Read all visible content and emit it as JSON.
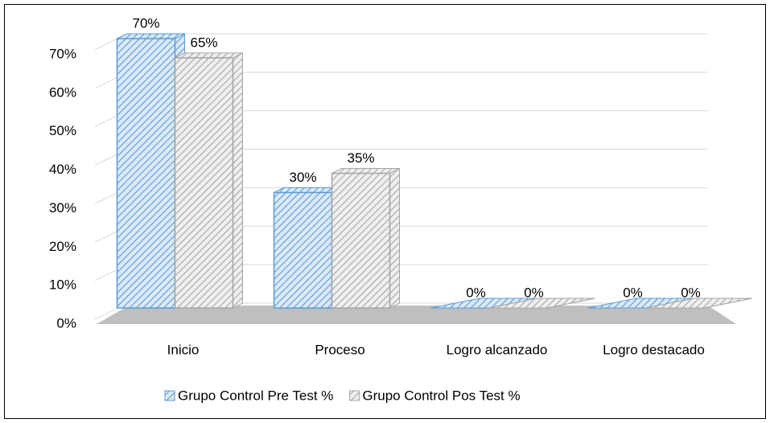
{
  "chart_data": {
    "type": "bar3d",
    "categories": [
      "Inicio",
      "Proceso",
      "Logro alcanzado",
      "Logro destacado"
    ],
    "series": [
      {
        "name": "Grupo Control Pre Test %",
        "color": "#5b9bd5",
        "values": [
          70,
          30,
          0,
          0
        ],
        "value_labels": [
          "70%",
          "30%",
          "0%",
          "0%"
        ]
      },
      {
        "name": "Grupo Control Pos Test %",
        "color": "#a5a5a5",
        "values": [
          65,
          35,
          0,
          0
        ],
        "value_labels": [
          "65%",
          "35%",
          "0%",
          "0%"
        ]
      }
    ],
    "ylim": [
      0,
      70
    ],
    "yticks": [
      {
        "value": 0,
        "label": "0%"
      },
      {
        "value": 10,
        "label": "10%"
      },
      {
        "value": 20,
        "label": "20%"
      },
      {
        "value": 30,
        "label": "30%"
      },
      {
        "value": 40,
        "label": "40%"
      },
      {
        "value": 50,
        "label": "50%"
      },
      {
        "value": 60,
        "label": "60%"
      },
      {
        "value": 70,
        "label": "70%"
      }
    ],
    "grid": true,
    "legend": "bottom"
  }
}
